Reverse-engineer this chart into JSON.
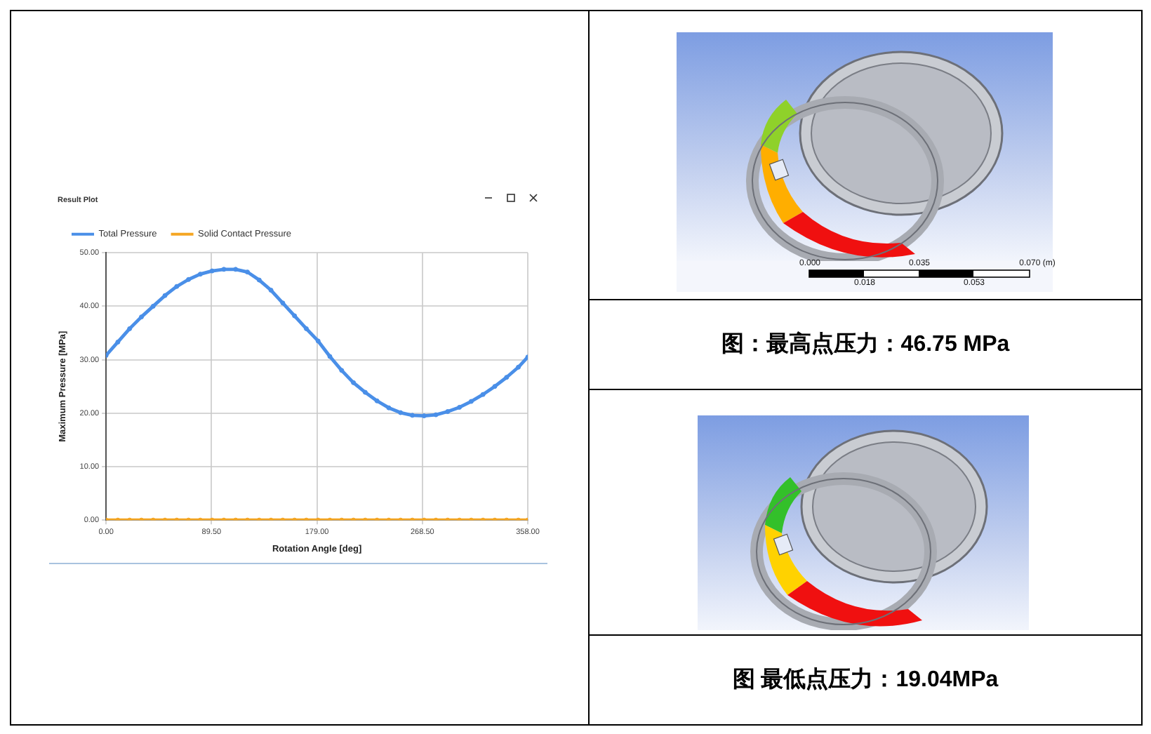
{
  "chart_data": {
    "type": "line",
    "title": "Result Plot",
    "xlabel": "Rotation Angle [deg]",
    "ylabel": "Maximum Pressure [MPa]",
    "x": [
      0,
      10,
      20,
      30,
      40,
      50,
      60,
      70,
      80,
      90,
      100,
      110,
      120,
      130,
      140,
      150,
      160,
      170,
      180,
      190,
      200,
      210,
      220,
      230,
      240,
      250,
      260,
      270,
      280,
      290,
      300,
      310,
      320,
      330,
      340,
      350,
      358
    ],
    "series": [
      {
        "name": "Total Pressure",
        "color": "#4a8fe8",
        "values": [
          30.8,
          33.3,
          35.8,
          38.0,
          40.0,
          42.0,
          43.7,
          45.0,
          46.0,
          46.6,
          46.9,
          46.9,
          46.4,
          44.9,
          43.0,
          40.6,
          38.2,
          35.8,
          33.5,
          30.6,
          28.0,
          25.7,
          23.9,
          22.3,
          21.0,
          20.1,
          19.6,
          19.5,
          19.7,
          20.3,
          21.1,
          22.2,
          23.5,
          25.0,
          26.7,
          28.6,
          30.5
        ]
      },
      {
        "name": "Solid Contact Pressure",
        "color": "#f5a623",
        "values": [
          0,
          0,
          0,
          0,
          0,
          0,
          0,
          0,
          0,
          0,
          0,
          0,
          0,
          0,
          0,
          0,
          0,
          0,
          0,
          0,
          0,
          0,
          0,
          0,
          0,
          0,
          0,
          0,
          0,
          0,
          0,
          0,
          0,
          0,
          0,
          0,
          0
        ]
      }
    ],
    "xlim": [
      0,
      358
    ],
    "xticks": [
      {
        "value": 0,
        "label": "0.00"
      },
      {
        "value": 89.5,
        "label": "89.50"
      },
      {
        "value": 179,
        "label": "179.00"
      },
      {
        "value": 268.5,
        "label": "268.50"
      },
      {
        "value": 358,
        "label": "358.00"
      }
    ],
    "ylim": [
      0,
      50
    ],
    "yticks": [
      {
        "value": 0,
        "label": "0.00"
      },
      {
        "value": 10,
        "label": "10.00"
      },
      {
        "value": 20,
        "label": "20.00"
      },
      {
        "value": 30,
        "label": "30.00"
      },
      {
        "value": 40,
        "label": "40.00"
      },
      {
        "value": 50,
        "label": "50.00"
      }
    ],
    "grid": true,
    "legend": "top left",
    "marker": "circle",
    "annotations": [
      "图：最高点压力：46.75 MPa",
      "图 最低点压力：19.04MPa",
      "0.000",
      "0.035",
      "0.070 (m)",
      "0.018",
      "0.053"
    ]
  }
}
